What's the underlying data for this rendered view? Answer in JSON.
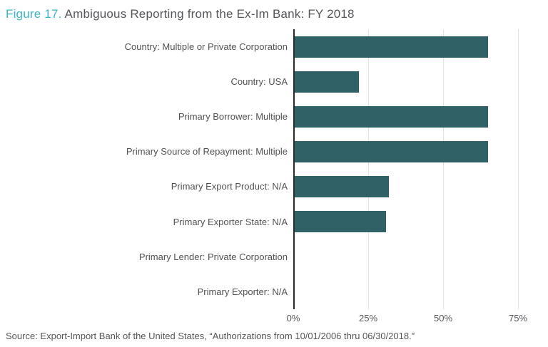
{
  "header": {
    "figure_label": "Figure 17.",
    "title": "Ambiguous Reporting from the Ex-Im Bank: FY 2018"
  },
  "chart_data": {
    "type": "bar",
    "orientation": "horizontal",
    "title": "Figure 17. Ambiguous Reporting from the Ex-Im Bank: FY 2018",
    "categories": [
      "Country: Multiple or Private Corporation",
      "Country: USA",
      "Primary Borrower: Multiple",
      "Primary Source of Repayment: Multiple",
      "Primary Export Product: N/A",
      "Primary Exporter State: N/A",
      "Primary Lender: Private Corporation",
      "Primary Exporter: N/A"
    ],
    "values": [
      65,
      22,
      65,
      65,
      32,
      31,
      0,
      0
    ],
    "unit": "%",
    "xlabel": "",
    "ylabel": "",
    "xlim": [
      0,
      80
    ],
    "ticks": [
      {
        "value": 0,
        "label": "0%"
      },
      {
        "value": 25,
        "label": "25%"
      },
      {
        "value": 50,
        "label": "50%"
      },
      {
        "value": 75,
        "label": "75%"
      }
    ],
    "grid": true,
    "legend": false,
    "bar_color": "#2F6166"
  },
  "footer": {
    "source": "Source: Export-Import Bank of the United States, “Authorizations from 10/01/2006 thru 06/30/2018.”"
  },
  "colors": {
    "figure_label": "#3CB4C6",
    "title_text": "#54565A",
    "bar": "#2F6166",
    "axis_line": "#2B2B2B",
    "gridline": "#E3E3E3",
    "label_text": "#515254",
    "tick_text": "#55565A",
    "source_text": "#55565A"
  }
}
